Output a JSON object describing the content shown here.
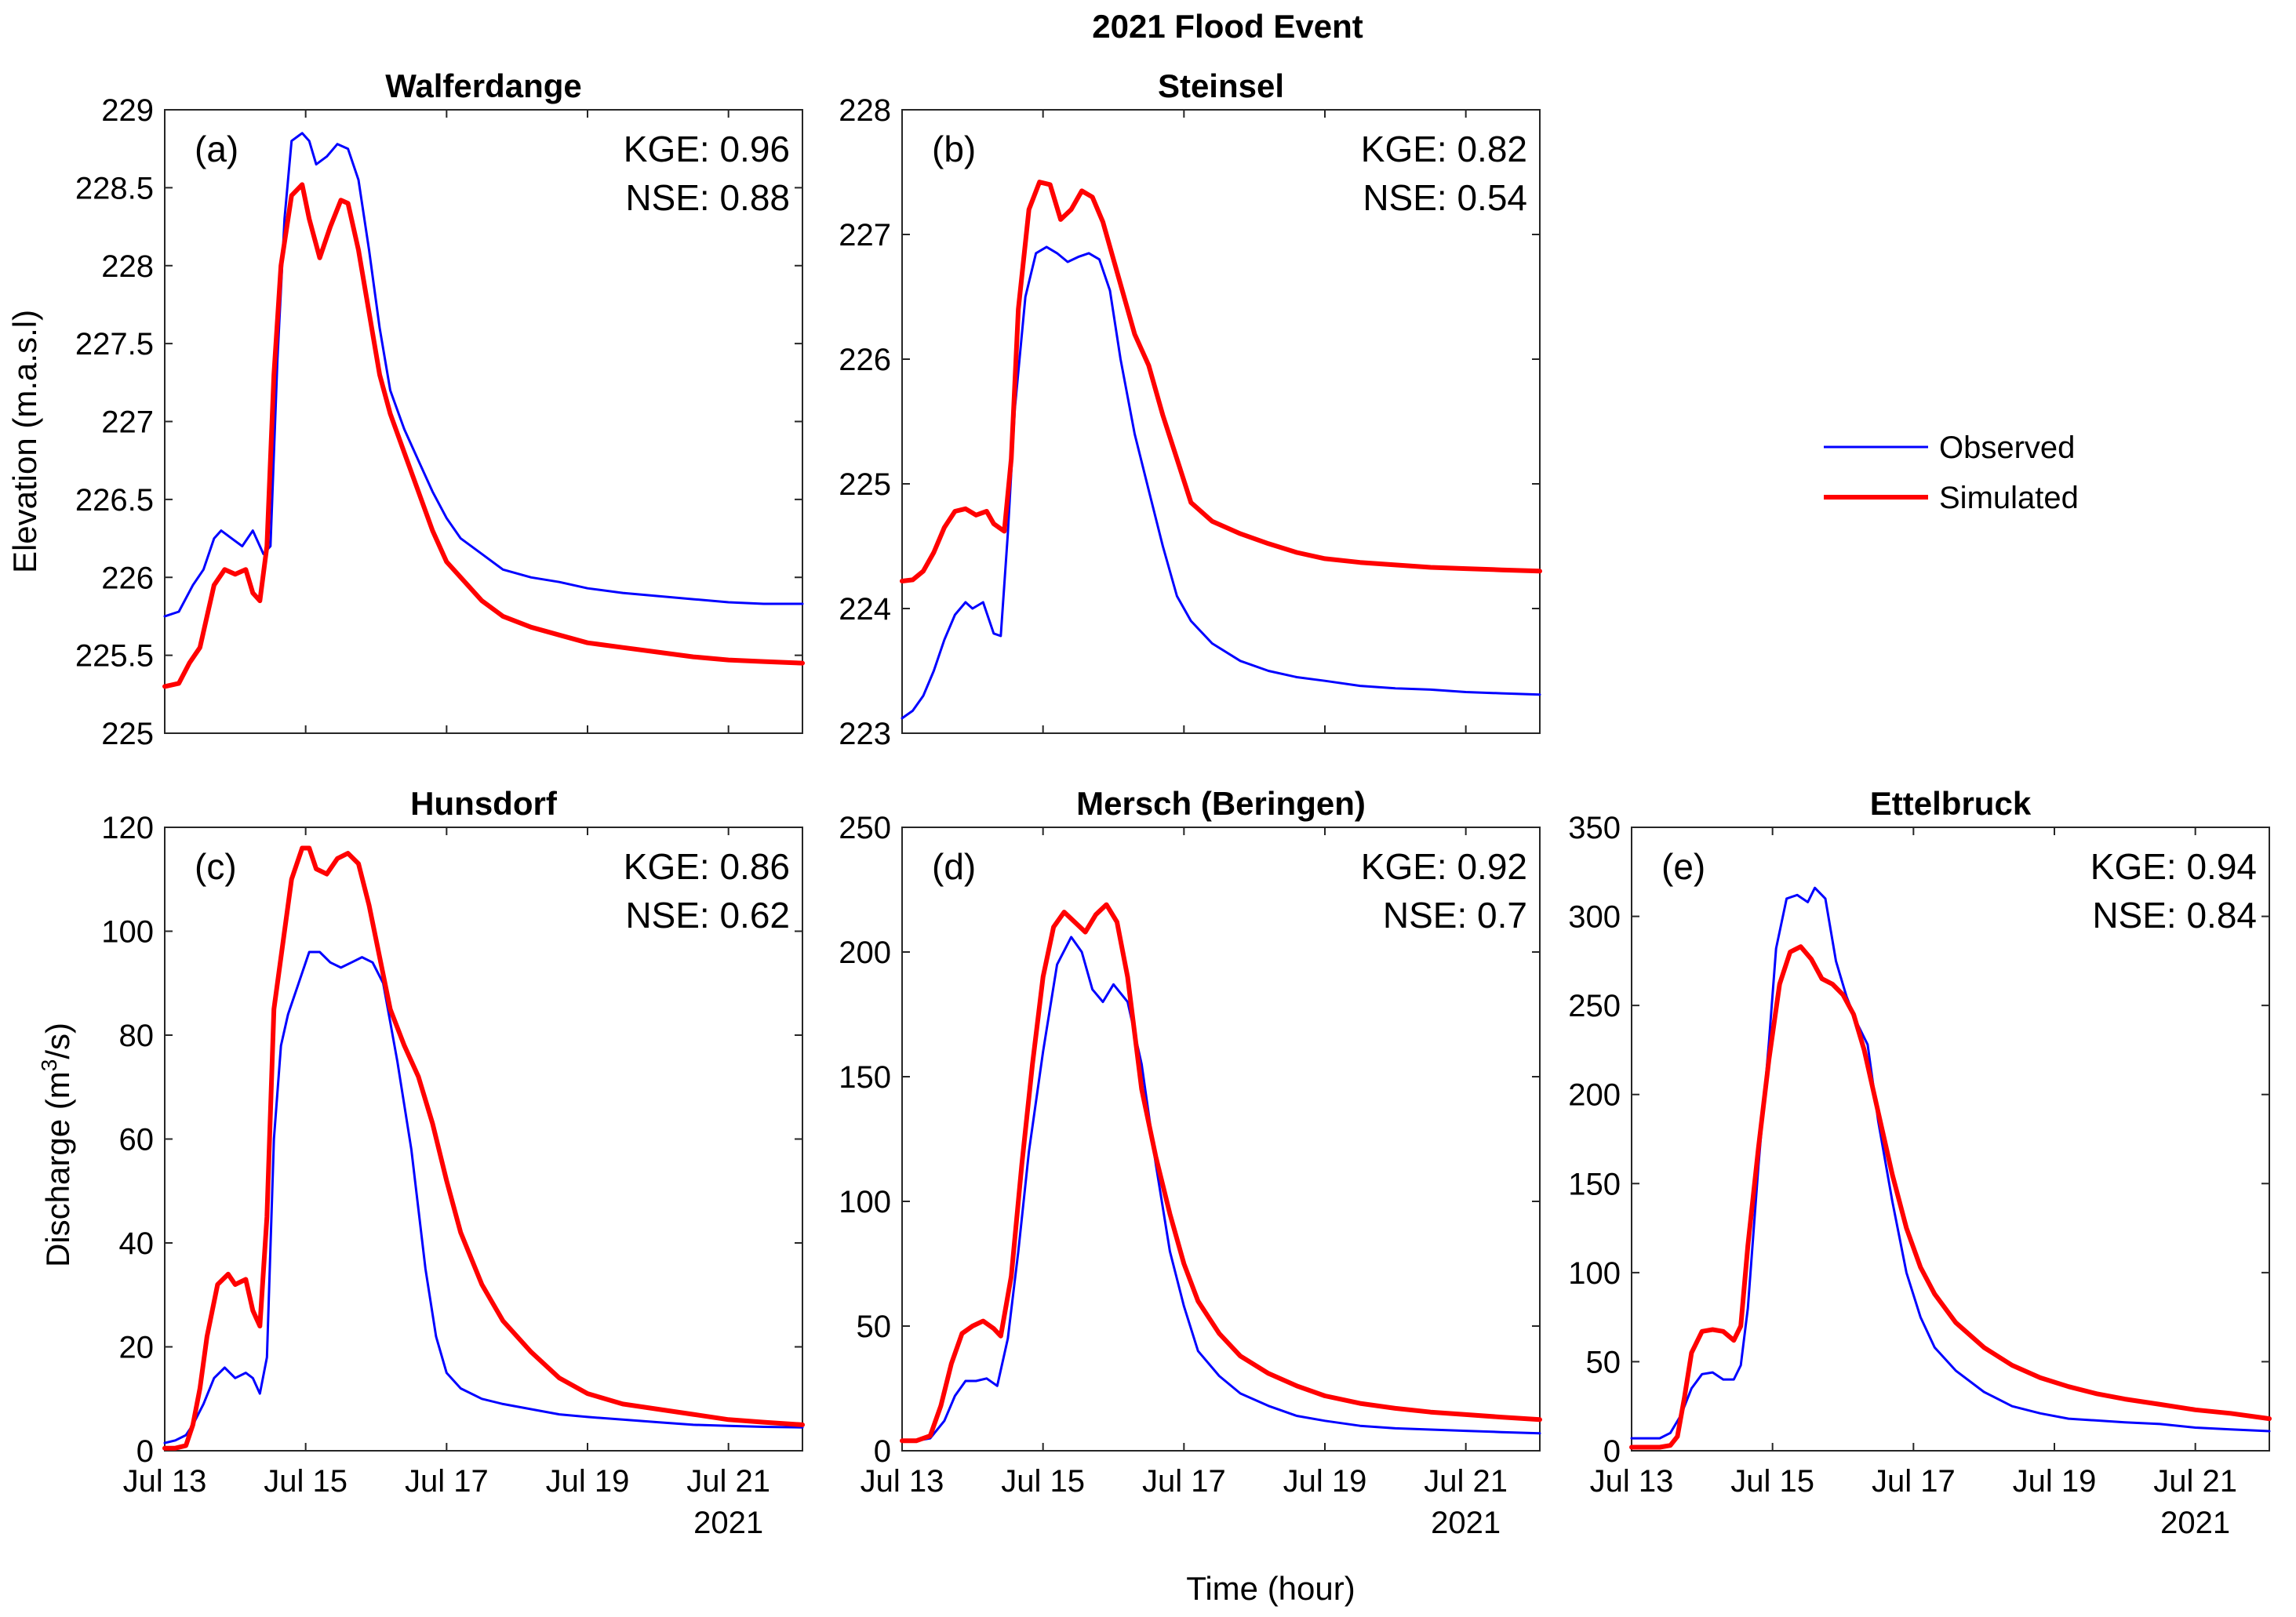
{
  "figure_title": "2021 Flood Event",
  "xlabel": "Time (hour)",
  "x_tick_labels": [
    "Jul 13",
    "Jul 15",
    "Jul 17",
    "Jul 19",
    "Jul 21"
  ],
  "x_year_label": "2021",
  "y_label_elevation": "Elevation (m.a.s.l)",
  "y_label_discharge_prefix": "Discharge (m",
  "y_label_discharge_sup": "3",
  "y_label_discharge_suffix": "/s)",
  "legend": {
    "position": "right, between rows",
    "entries": [
      {
        "label": "Observed",
        "color": "#0000ff"
      },
      {
        "label": "Simulated",
        "color": "#ff0000"
      }
    ]
  },
  "colors": {
    "observed": "#0000ff",
    "simulated": "#ff0000"
  },
  "chart_data": [
    {
      "type": "line",
      "id": "a",
      "panel_label": "(a)",
      "title": "Walferdange",
      "kge": "KGE: 0.96",
      "nse": "NSE: 0.88",
      "x_range": [
        13,
        22.05
      ],
      "xticks": [
        13,
        15,
        17,
        19,
        21
      ],
      "ylim": [
        225,
        229
      ],
      "yticks": [
        225,
        225.5,
        226,
        226.5,
        227,
        227.5,
        228,
        228.5,
        229
      ],
      "ytick_labels": [
        "225",
        "225.5",
        "226",
        "226.5",
        "227",
        "227.5",
        "228",
        "228.5",
        "229"
      ],
      "series": [
        {
          "name": "Observed",
          "x": [
            13,
            13.2,
            13.4,
            13.55,
            13.7,
            13.8,
            13.95,
            14.1,
            14.25,
            14.4,
            14.5,
            14.6,
            14.7,
            14.8,
            14.95,
            15.05,
            15.15,
            15.3,
            15.45,
            15.6,
            15.75,
            15.9,
            16.05,
            16.2,
            16.4,
            16.6,
            16.8,
            17.0,
            17.2,
            17.5,
            17.8,
            18.2,
            18.6,
            19.0,
            19.5,
            20.0,
            20.5,
            21.0,
            21.5,
            22.05
          ],
          "values": [
            225.75,
            225.78,
            225.95,
            226.05,
            226.25,
            226.3,
            226.25,
            226.2,
            226.3,
            226.15,
            226.2,
            227.4,
            228.3,
            228.8,
            228.85,
            228.8,
            228.65,
            228.7,
            228.78,
            228.75,
            228.55,
            228.1,
            227.6,
            227.2,
            226.95,
            226.75,
            226.55,
            226.38,
            226.25,
            226.15,
            226.05,
            226.0,
            225.97,
            225.93,
            225.9,
            225.88,
            225.86,
            225.84,
            225.83,
            225.83
          ]
        },
        {
          "name": "Simulated",
          "x": [
            13,
            13.2,
            13.35,
            13.5,
            13.6,
            13.7,
            13.85,
            14.0,
            14.15,
            14.25,
            14.35,
            14.45,
            14.55,
            14.65,
            14.8,
            14.95,
            15.05,
            15.2,
            15.35,
            15.5,
            15.6,
            15.75,
            15.9,
            16.05,
            16.2,
            16.4,
            16.6,
            16.8,
            17.0,
            17.2,
            17.5,
            17.8,
            18.2,
            18.6,
            19.0,
            19.5,
            20.0,
            20.5,
            21.0,
            21.5,
            22.05
          ],
          "values": [
            225.3,
            225.32,
            225.45,
            225.55,
            225.75,
            225.95,
            226.05,
            226.02,
            226.05,
            225.9,
            225.85,
            226.2,
            227.3,
            228.0,
            228.45,
            228.52,
            228.3,
            228.05,
            228.25,
            228.42,
            228.4,
            228.1,
            227.7,
            227.3,
            227.05,
            226.8,
            226.55,
            226.3,
            226.1,
            226.0,
            225.85,
            225.75,
            225.68,
            225.63,
            225.58,
            225.55,
            225.52,
            225.49,
            225.47,
            225.46,
            225.45
          ]
        }
      ]
    },
    {
      "type": "line",
      "id": "b",
      "panel_label": "(b)",
      "title": "Steinsel",
      "kge": "KGE: 0.82",
      "nse": "NSE: 0.54",
      "x_range": [
        13,
        22.05
      ],
      "xticks": [
        13,
        15,
        17,
        19,
        21
      ],
      "ylim": [
        223,
        228
      ],
      "yticks": [
        223,
        224,
        225,
        226,
        227,
        228
      ],
      "ytick_labels": [
        "223",
        "224",
        "225",
        "226",
        "227",
        "228"
      ],
      "series": [
        {
          "name": "Observed",
          "x": [
            13,
            13.15,
            13.3,
            13.45,
            13.6,
            13.75,
            13.9,
            14.0,
            14.15,
            14.3,
            14.4,
            14.5,
            14.6,
            14.75,
            14.9,
            15.05,
            15.2,
            15.35,
            15.5,
            15.65,
            15.8,
            15.95,
            16.1,
            16.3,
            16.5,
            16.7,
            16.9,
            17.1,
            17.4,
            17.8,
            18.2,
            18.6,
            19.0,
            19.5,
            20.0,
            20.5,
            21.0,
            21.5,
            22.05
          ],
          "values": [
            223.12,
            223.18,
            223.3,
            223.5,
            223.75,
            223.95,
            224.05,
            224.0,
            224.05,
            223.8,
            223.78,
            224.6,
            225.6,
            226.5,
            226.85,
            226.9,
            226.85,
            226.78,
            226.82,
            226.85,
            226.8,
            226.55,
            226.0,
            225.4,
            224.95,
            224.5,
            224.1,
            223.9,
            223.72,
            223.58,
            223.5,
            223.45,
            223.42,
            223.38,
            223.36,
            223.35,
            223.33,
            223.32,
            223.31
          ]
        },
        {
          "name": "Simulated",
          "x": [
            13,
            13.15,
            13.3,
            13.45,
            13.6,
            13.75,
            13.9,
            14.05,
            14.2,
            14.3,
            14.45,
            14.55,
            14.65,
            14.8,
            14.95,
            15.1,
            15.25,
            15.4,
            15.55,
            15.7,
            15.85,
            16.0,
            16.15,
            16.3,
            16.5,
            16.7,
            16.9,
            17.1,
            17.4,
            17.8,
            18.2,
            18.6,
            19.0,
            19.5,
            20.0,
            20.5,
            21.0,
            21.5,
            22.05
          ],
          "values": [
            224.22,
            224.23,
            224.3,
            224.45,
            224.65,
            224.78,
            224.8,
            224.75,
            224.78,
            224.68,
            224.62,
            225.2,
            226.4,
            227.2,
            227.42,
            227.4,
            227.12,
            227.2,
            227.35,
            227.3,
            227.1,
            226.8,
            226.5,
            226.2,
            225.95,
            225.55,
            225.2,
            224.85,
            224.7,
            224.6,
            224.52,
            224.45,
            224.4,
            224.37,
            224.35,
            224.33,
            224.32,
            224.31,
            224.3
          ]
        }
      ]
    },
    {
      "type": "line",
      "id": "c",
      "panel_label": "(c)",
      "title": "Hunsdorf",
      "kge": "KGE: 0.86",
      "nse": "NSE: 0.62",
      "x_range": [
        13,
        22.05
      ],
      "xticks": [
        13,
        15,
        17,
        19,
        21
      ],
      "ylim": [
        0,
        120
      ],
      "yticks": [
        0,
        20,
        40,
        60,
        80,
        100,
        120
      ],
      "ytick_labels": [
        "0",
        "20",
        "40",
        "60",
        "80",
        "100",
        "120"
      ],
      "series": [
        {
          "name": "Observed",
          "x": [
            13,
            13.15,
            13.3,
            13.4,
            13.55,
            13.7,
            13.85,
            14.0,
            14.15,
            14.25,
            14.35,
            14.45,
            14.55,
            14.65,
            14.75,
            14.9,
            15.05,
            15.2,
            15.35,
            15.5,
            15.65,
            15.8,
            15.95,
            16.1,
            16.3,
            16.5,
            16.7,
            16.85,
            17.0,
            17.2,
            17.5,
            17.8,
            18.2,
            18.6,
            19.0,
            19.5,
            20.0,
            20.5,
            21.0,
            21.5,
            22.05
          ],
          "values": [
            1.5,
            2,
            3,
            5,
            9,
            14,
            16,
            14,
            15,
            14,
            11,
            18,
            60,
            78,
            84,
            90,
            96,
            96,
            94,
            93,
            94,
            95,
            94,
            90,
            75,
            58,
            35,
            22,
            15,
            12,
            10,
            9,
            8,
            7,
            6.5,
            6,
            5.5,
            5,
            4.8,
            4.6,
            4.5
          ]
        },
        {
          "name": "Simulated",
          "x": [
            13,
            13.15,
            13.3,
            13.4,
            13.5,
            13.6,
            13.75,
            13.9,
            14.0,
            14.15,
            14.25,
            14.35,
            14.45,
            14.55,
            14.65,
            14.8,
            14.95,
            15.05,
            15.15,
            15.3,
            15.45,
            15.6,
            15.75,
            15.9,
            16.05,
            16.2,
            16.4,
            16.6,
            16.8,
            17.0,
            17.2,
            17.5,
            17.8,
            18.2,
            18.6,
            19.0,
            19.5,
            20.0,
            20.5,
            21.0,
            21.5,
            22.05
          ],
          "values": [
            0.5,
            0.5,
            1,
            5,
            12,
            22,
            32,
            34,
            32,
            33,
            27,
            24,
            45,
            85,
            95,
            110,
            116,
            116,
            112,
            111,
            114,
            115,
            113,
            105,
            95,
            85,
            78,
            72,
            63,
            52,
            42,
            32,
            25,
            19,
            14,
            11,
            9,
            8,
            7,
            6,
            5.5,
            5
          ]
        }
      ]
    },
    {
      "type": "line",
      "id": "d",
      "panel_label": "(d)",
      "title": "Mersch (Beringen)",
      "kge": "KGE: 0.92",
      "nse": "NSE: 0.7",
      "x_range": [
        13,
        22.05
      ],
      "xticks": [
        13,
        15,
        17,
        19,
        21
      ],
      "ylim": [
        0,
        250
      ],
      "yticks": [
        0,
        50,
        100,
        150,
        200,
        250
      ],
      "ytick_labels": [
        "0",
        "50",
        "100",
        "150",
        "200",
        "250"
      ],
      "series": [
        {
          "name": "Observed",
          "x": [
            13,
            13.2,
            13.4,
            13.6,
            13.75,
            13.9,
            14.05,
            14.2,
            14.35,
            14.5,
            14.65,
            14.8,
            15.0,
            15.2,
            15.4,
            15.55,
            15.7,
            15.85,
            16.0,
            16.2,
            16.4,
            16.6,
            16.8,
            17.0,
            17.2,
            17.5,
            17.8,
            18.2,
            18.6,
            19.0,
            19.5,
            20.0,
            20.5,
            21.0,
            21.5,
            22.05
          ],
          "values": [
            4,
            4,
            5,
            12,
            22,
            28,
            28,
            29,
            26,
            45,
            80,
            120,
            160,
            195,
            206,
            200,
            185,
            180,
            187,
            180,
            155,
            115,
            80,
            58,
            40,
            30,
            23,
            18,
            14,
            12,
            10,
            9,
            8.5,
            8,
            7.5,
            7
          ]
        },
        {
          "name": "Simulated",
          "x": [
            13,
            13.2,
            13.4,
            13.55,
            13.7,
            13.85,
            14.0,
            14.15,
            14.3,
            14.4,
            14.55,
            14.7,
            14.85,
            15.0,
            15.15,
            15.3,
            15.45,
            15.6,
            15.75,
            15.9,
            16.05,
            16.2,
            16.4,
            16.6,
            16.8,
            17.0,
            17.2,
            17.5,
            17.8,
            18.2,
            18.6,
            19.0,
            19.5,
            20.0,
            20.5,
            21.0,
            21.5,
            22.05
          ],
          "values": [
            4,
            4,
            6,
            18,
            35,
            47,
            50,
            52,
            49,
            46,
            70,
            115,
            155,
            190,
            210,
            216,
            212,
            208,
            215,
            219,
            212,
            190,
            145,
            118,
            95,
            75,
            60,
            47,
            38,
            31,
            26,
            22,
            19,
            17,
            15.5,
            14.5,
            13.5,
            12.5
          ]
        }
      ]
    },
    {
      "type": "line",
      "id": "e",
      "panel_label": "(e)",
      "title": "Ettelbruck",
      "kge": "KGE: 0.94",
      "nse": "NSE: 0.84",
      "x_range": [
        13,
        22.05
      ],
      "xticks": [
        13,
        15,
        17,
        19,
        21
      ],
      "ylim": [
        0,
        350
      ],
      "yticks": [
        0,
        50,
        100,
        150,
        200,
        250,
        300,
        350
      ],
      "ytick_labels": [
        "0",
        "50",
        "100",
        "150",
        "200",
        "250",
        "300",
        "350"
      ],
      "series": [
        {
          "name": "Observed",
          "x": [
            13,
            13.2,
            13.4,
            13.55,
            13.7,
            13.85,
            14.0,
            14.15,
            14.3,
            14.45,
            14.55,
            14.65,
            14.8,
            14.95,
            15.05,
            15.2,
            15.35,
            15.5,
            15.6,
            15.75,
            15.9,
            16.05,
            16.2,
            16.35,
            16.5,
            16.7,
            16.9,
            17.1,
            17.3,
            17.6,
            18.0,
            18.4,
            18.8,
            19.2,
            19.6,
            20.0,
            20.5,
            21.0,
            21.5,
            22.05
          ],
          "values": [
            7,
            7,
            7,
            10,
            20,
            35,
            43,
            44,
            40,
            40,
            48,
            80,
            160,
            230,
            282,
            310,
            312,
            308,
            316,
            310,
            275,
            255,
            240,
            228,
            185,
            140,
            100,
            75,
            58,
            45,
            33,
            25,
            21,
            18,
            17,
            16,
            15,
            13,
            12,
            11
          ]
        },
        {
          "name": "Simulated",
          "x": [
            13,
            13.2,
            13.4,
            13.55,
            13.65,
            13.75,
            13.85,
            14.0,
            14.15,
            14.3,
            14.45,
            14.55,
            14.65,
            14.8,
            14.95,
            15.1,
            15.25,
            15.4,
            15.55,
            15.7,
            15.85,
            16.0,
            16.15,
            16.3,
            16.5,
            16.7,
            16.9,
            17.1,
            17.3,
            17.6,
            18.0,
            18.4,
            18.8,
            19.2,
            19.6,
            20.0,
            20.5,
            21.0,
            21.5,
            22.05
          ],
          "values": [
            2,
            2,
            2,
            3,
            8,
            30,
            55,
            67,
            68,
            67,
            62,
            70,
            115,
            170,
            220,
            262,
            280,
            283,
            276,
            265,
            262,
            256,
            245,
            225,
            190,
            155,
            125,
            103,
            88,
            72,
            58,
            48,
            41,
            36,
            32,
            29,
            26,
            23,
            21,
            18
          ]
        }
      ]
    }
  ]
}
